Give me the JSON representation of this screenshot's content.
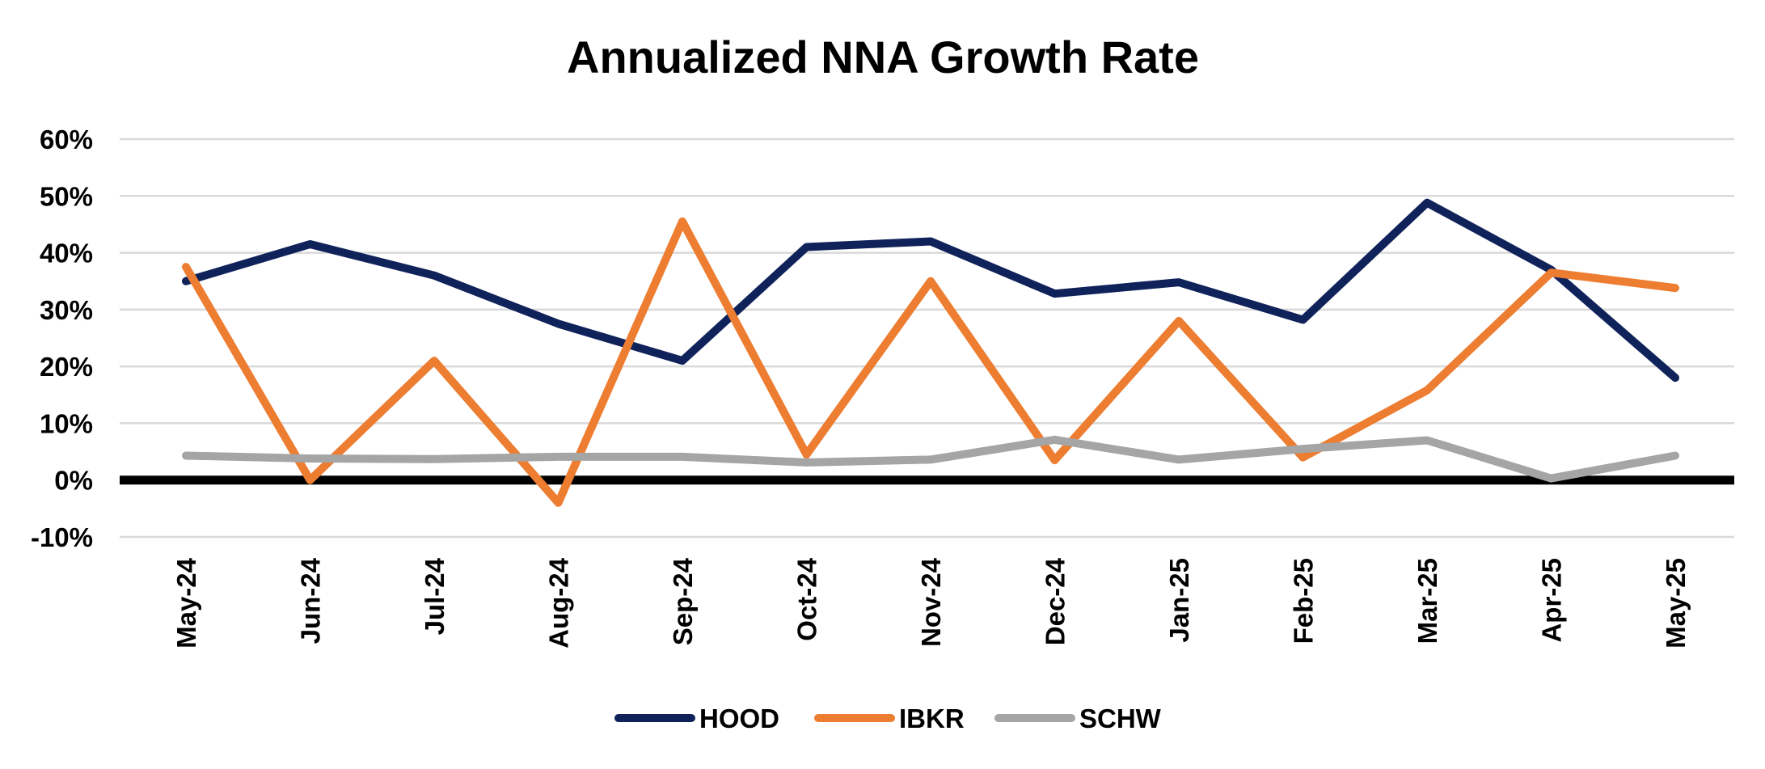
{
  "chart_data": {
    "type": "line",
    "title": "Annualized NNA Growth Rate",
    "xlabel": "",
    "ylabel": "",
    "categories": [
      "May-24",
      "Jun-24",
      "Jul-24",
      "Aug-24",
      "Sep-24",
      "Oct-24",
      "Nov-24",
      "Dec-24",
      "Jan-25",
      "Feb-25",
      "Mar-25",
      "Apr-25",
      "May-25"
    ],
    "series": [
      {
        "name": "HOOD",
        "color": "#10225a",
        "values": [
          0.35,
          0.415,
          0.36,
          0.275,
          0.21,
          0.41,
          0.42,
          0.328,
          0.348,
          0.282,
          0.488,
          0.37,
          0.18
        ]
      },
      {
        "name": "IBKR",
        "color": "#ed7d31",
        "values": [
          0.375,
          0.0,
          0.21,
          -0.04,
          0.455,
          0.045,
          0.35,
          0.035,
          0.28,
          0.04,
          0.158,
          0.365,
          0.338
        ]
      },
      {
        "name": "SCHW",
        "color": "#a5a5a5",
        "values": [
          0.043,
          0.038,
          0.037,
          0.041,
          0.041,
          0.031,
          0.036,
          0.071,
          0.036,
          0.055,
          0.07,
          0.003,
          0.043
        ]
      }
    ],
    "ylim": [
      -0.1,
      0.6
    ],
    "yticks": [
      -0.1,
      0.0,
      0.1,
      0.2,
      0.3,
      0.4,
      0.5,
      0.6
    ],
    "ytick_labels": [
      "-10%",
      "0%",
      "10%",
      "20%",
      "30%",
      "40%",
      "50%",
      "60%"
    ],
    "grid": true,
    "legend_position": "bottom-center"
  }
}
